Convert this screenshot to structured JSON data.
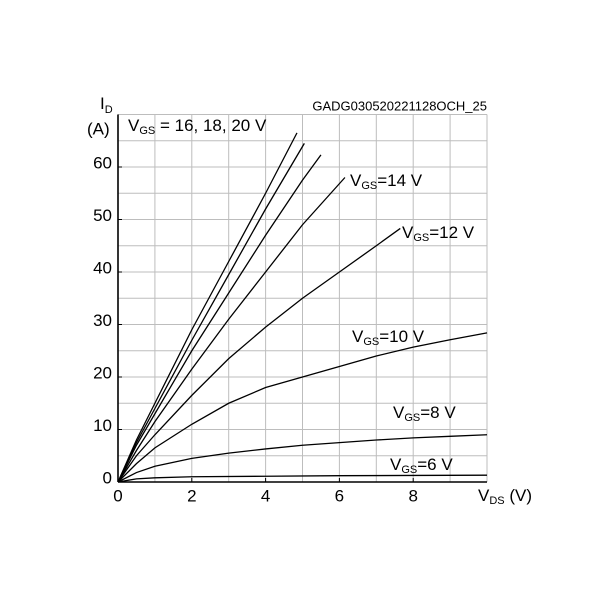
{
  "chart_data": {
    "type": "line",
    "code": "GADG030520221128OCH_25",
    "y_label": [
      "I",
      "D",
      "(A)"
    ],
    "x_label": [
      "V",
      "DS",
      " (V)"
    ],
    "xlim": [
      0,
      10
    ],
    "xticks": [
      0,
      2,
      4,
      6,
      8
    ],
    "ylim": [
      0,
      70
    ],
    "yticks": [
      0,
      10,
      20,
      30,
      40,
      50,
      60
    ],
    "x_grid_step": 1,
    "y_grid_step": 5,
    "grid": true,
    "color": "#000000",
    "annotations": [
      [
        "V",
        "GS",
        " = 16, 18, 20 V"
      ],
      [
        "V",
        "GS",
        "=14 V"
      ],
      [
        "V",
        "GS",
        "=12 V"
      ],
      [
        "V",
        "GS",
        "=10 V"
      ],
      [
        "V",
        "GS",
        "=8 V"
      ],
      [
        "V",
        "GS",
        "=6 V"
      ]
    ],
    "series": [
      {
        "x": [
          0,
          0.5,
          1,
          2,
          3,
          4,
          4.85
        ],
        "values": [
          0,
          8,
          15,
          29,
          42,
          55,
          66.5
        ]
      },
      {
        "x": [
          0,
          0.5,
          1,
          2,
          3,
          4,
          5.05
        ],
        "values": [
          0,
          7.5,
          14,
          27,
          39.5,
          52,
          64.5
        ]
      },
      {
        "x": [
          0,
          0.5,
          1,
          2,
          3,
          4,
          5,
          5.5
        ],
        "values": [
          0,
          7,
          13,
          25,
          36,
          47,
          57.5,
          62.3
        ]
      },
      {
        "x": [
          0,
          0.5,
          1,
          2,
          3,
          4,
          5,
          6.15
        ],
        "values": [
          0,
          6,
          11.5,
          21.5,
          31,
          40,
          49,
          58
        ]
      },
      {
        "x": [
          0,
          0.5,
          1,
          2,
          3,
          4,
          5,
          6,
          7,
          7.65
        ],
        "values": [
          0,
          5,
          9,
          16.5,
          23.5,
          29.5,
          35,
          40,
          45,
          48.3
        ]
      },
      {
        "x": [
          0,
          0.5,
          1,
          2,
          3,
          4,
          5,
          6,
          7,
          8,
          9,
          10
        ],
        "values": [
          0,
          3.5,
          6.5,
          11,
          15,
          18,
          20,
          22,
          24,
          25.7,
          27.1,
          28.4
        ]
      },
      {
        "x": [
          0,
          0.5,
          1,
          2,
          3,
          4,
          5,
          6,
          7,
          8,
          9,
          10
        ],
        "values": [
          0,
          1.8,
          3,
          4.5,
          5.5,
          6.3,
          7,
          7.5,
          8,
          8.4,
          8.7,
          9
        ]
      },
      {
        "x": [
          0,
          0.5,
          1,
          2,
          4,
          6,
          8,
          10
        ],
        "values": [
          0,
          0.6,
          0.8,
          1,
          1.1,
          1.2,
          1.25,
          1.3
        ]
      }
    ]
  }
}
